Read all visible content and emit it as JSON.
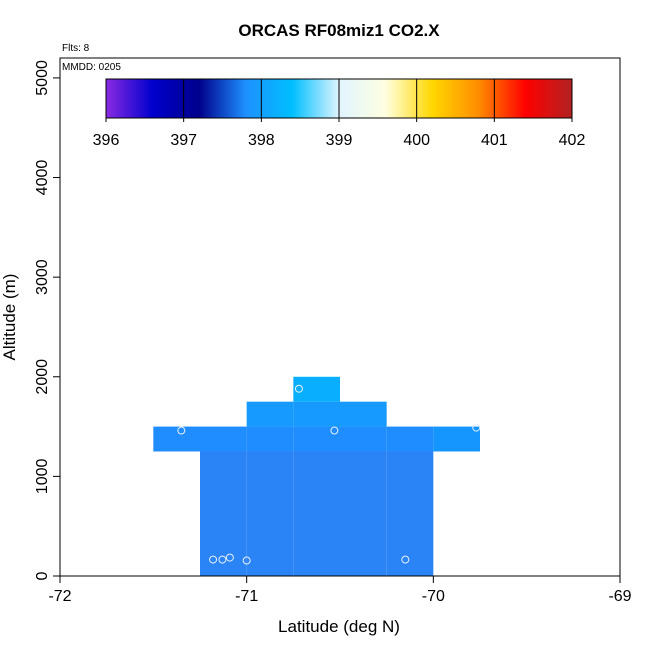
{
  "chart_data": {
    "type": "heatmap",
    "title": "ORCAS RF08miz1 CO2.X",
    "flights_label": "Flts: 8",
    "date_label": "MMDD: 0205",
    "xlabel": "Latitude (deg N)",
    "ylabel": "Altitude (m)",
    "xlim": [
      -72,
      -69
    ],
    "ylim": [
      0,
      5200
    ],
    "xticks": [
      -72,
      -71,
      -70,
      -69
    ],
    "xtick_labels": [
      "-72",
      "-71",
      "-70",
      "-69"
    ],
    "yticks": [
      0,
      1000,
      2000,
      3000,
      4000,
      5000
    ],
    "ytick_labels": [
      "0",
      "1000",
      "2000",
      "3000",
      "4000",
      "5000"
    ],
    "colorbar": {
      "min": 396,
      "max": 402,
      "ticks": [
        396,
        397,
        398,
        399,
        400,
        401,
        402
      ],
      "tick_labels": [
        "396",
        "397",
        "398",
        "399",
        "400",
        "401",
        "402"
      ],
      "colors": [
        "#8a2be2",
        "#0000cd",
        "#00008b",
        "#1e90ff",
        "#00bfff",
        "#e0f4ff",
        "#ffffe0",
        "#ffd700",
        "#ff8c00",
        "#ff0000",
        "#b22222"
      ]
    },
    "cells": [
      {
        "lat0": -71.5,
        "lat1": -71.25,
        "alt0": 1250,
        "alt1": 1500,
        "value": 397.7,
        "color": "#1f8cff"
      },
      {
        "lat0": -71.25,
        "lat1": -71.0,
        "alt0": 1250,
        "alt1": 1500,
        "value": 397.7,
        "color": "#1f8cff"
      },
      {
        "lat0": -71.0,
        "lat1": -70.75,
        "alt0": 1250,
        "alt1": 1500,
        "value": 397.7,
        "color": "#1f8cff"
      },
      {
        "lat0": -70.75,
        "lat1": -70.5,
        "alt0": 1250,
        "alt1": 1500,
        "value": 397.7,
        "color": "#1f8cff"
      },
      {
        "lat0": -70.5,
        "lat1": -70.25,
        "alt0": 1250,
        "alt1": 1500,
        "value": 397.7,
        "color": "#1f8cff"
      },
      {
        "lat0": -70.25,
        "lat1": -70.0,
        "alt0": 1250,
        "alt1": 1500,
        "value": 397.7,
        "color": "#1f8cff"
      },
      {
        "lat0": -70.0,
        "lat1": -69.75,
        "alt0": 1250,
        "alt1": 1500,
        "value": 397.9,
        "color": "#1596ff"
      },
      {
        "lat0": -71.0,
        "lat1": -70.75,
        "alt0": 1500,
        "alt1": 1750,
        "value": 397.9,
        "color": "#169aff"
      },
      {
        "lat0": -70.75,
        "lat1": -70.5,
        "alt0": 1500,
        "alt1": 1750,
        "value": 397.9,
        "color": "#169aff"
      },
      {
        "lat0": -70.5,
        "lat1": -70.25,
        "alt0": 1500,
        "alt1": 1750,
        "value": 397.9,
        "color": "#169aff"
      },
      {
        "lat0": -70.75,
        "lat1": -70.5,
        "alt0": 1750,
        "alt1": 2000,
        "value": 398.0,
        "color": "#0aaeff"
      },
      {
        "lat0": -71.25,
        "lat1": -71.0,
        "alt0": 0,
        "alt1": 1250,
        "value": 397.6,
        "color": "#2a84f6"
      },
      {
        "lat0": -71.0,
        "lat1": -70.75,
        "alt0": 0,
        "alt1": 1250,
        "value": 397.6,
        "color": "#2a84f6"
      },
      {
        "lat0": -70.75,
        "lat1": -70.5,
        "alt0": 0,
        "alt1": 1250,
        "value": 397.6,
        "color": "#2a84f6"
      },
      {
        "lat0": -70.5,
        "lat1": -70.25,
        "alt0": 0,
        "alt1": 1250,
        "value": 397.6,
        "color": "#2a84f6"
      },
      {
        "lat0": -70.25,
        "lat1": -70.0,
        "alt0": 0,
        "alt1": 1250,
        "value": 397.6,
        "color": "#2a84f6"
      }
    ],
    "points": [
      {
        "lat": -71.35,
        "alt": 1460
      },
      {
        "lat": -70.72,
        "alt": 1880
      },
      {
        "lat": -70.53,
        "alt": 1460
      },
      {
        "lat": -69.77,
        "alt": 1490
      },
      {
        "lat": -71.18,
        "alt": 165
      },
      {
        "lat": -71.13,
        "alt": 165
      },
      {
        "lat": -71.09,
        "alt": 185
      },
      {
        "lat": -71.0,
        "alt": 155
      },
      {
        "lat": -70.15,
        "alt": 165
      }
    ]
  }
}
